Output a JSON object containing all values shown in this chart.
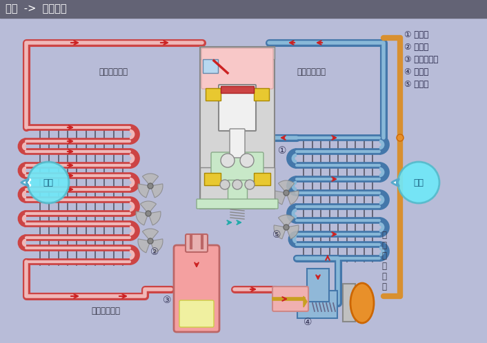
{
  "title": "原理  ->  制冷原理",
  "title_bar_color": "#636375",
  "title_text_color": "#ffffff",
  "bg_color": "#b8bcd8",
  "legend_items": [
    "① 压缩机",
    "② 冷凝器",
    "③ 储液干燥器",
    "④ 膨胀阀",
    "⑤ 蕲发器"
  ],
  "labels": {
    "high_temp_gas": "高温高压气态",
    "low_temp_gas": "低温低压气态",
    "mid_temp_liquid": "中温高压气态",
    "low_temp_liquid": "低\n温\n低\n压\n液\n态",
    "heat_dissipate": "散热",
    "heat_absorb": "吸热",
    "comp_num": "①",
    "cond_num": "②",
    "drier_num": "③",
    "exp_num": "④",
    "evap_num": "⑤"
  },
  "pipe_hot_color": "#f0b8b8",
  "pipe_hot_border": "#cc4444",
  "pipe_cold_color": "#88b8d8",
  "pipe_cold_border": "#4477aa",
  "arrow_color": "#cc2222",
  "drier_body_color": "#f4a0a0",
  "drier_crystal_color": "#f0f0a0",
  "compressor_outer": "#d8d8d8",
  "compressor_head_color": "#f8c8c8",
  "compressor_piston_color": "#ffffff",
  "compressor_green": "#c8e8c8",
  "compressor_yellow": "#e8c830",
  "expansion_pink": "#f0b0b0",
  "expansion_blue": "#90b8d8",
  "expansion_orange": "#e8902a",
  "fan_color": "#aaaaaa",
  "bubble_color": "#70e8f8",
  "bubble_text_color": "#1a6080",
  "orange_tube_color": "#d89030",
  "grid_color": "#555566",
  "arrow_head_color": "#cc2222"
}
